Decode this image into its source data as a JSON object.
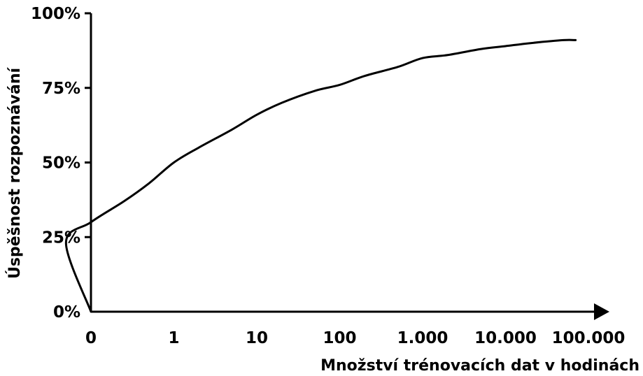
{
  "chart_data": {
    "type": "line",
    "title": "",
    "xlabel": "Množství trénovacích dat v hodinách",
    "ylabel": "Úspěšnost rozpoznávání",
    "x_scale": "log",
    "x_ticks": [
      {
        "label": "0",
        "value": 0
      },
      {
        "label": "1",
        "value": 1
      },
      {
        "label": "10",
        "value": 10
      },
      {
        "label": "100",
        "value": 100
      },
      {
        "label": "1.000",
        "value": 1000
      },
      {
        "label": "10.000",
        "value": 10000
      },
      {
        "label": "100.000",
        "value": 100000
      }
    ],
    "y_ticks": [
      {
        "label": "0%",
        "value": 0
      },
      {
        "label": "25%",
        "value": 25
      },
      {
        "label": "50%",
        "value": 50
      },
      {
        "label": "75%",
        "value": 75
      },
      {
        "label": "100%",
        "value": 100
      }
    ],
    "ylim": [
      0,
      100
    ],
    "grid": false,
    "line_color": "#000000",
    "series": [
      {
        "name": "",
        "points": [
          {
            "x": 0,
            "y": 0
          },
          {
            "x": 0.05,
            "y": 23
          },
          {
            "x": 0.1,
            "y": 30
          },
          {
            "x": 0.25,
            "y": 37
          },
          {
            "x": 0.5,
            "y": 43
          },
          {
            "x": 1,
            "y": 50
          },
          {
            "x": 2,
            "y": 55
          },
          {
            "x": 5,
            "y": 61
          },
          {
            "x": 10,
            "y": 66
          },
          {
            "x": 20,
            "y": 70
          },
          {
            "x": 50,
            "y": 74
          },
          {
            "x": 100,
            "y": 76
          },
          {
            "x": 200,
            "y": 79
          },
          {
            "x": 500,
            "y": 82
          },
          {
            "x": 1000,
            "y": 85
          },
          {
            "x": 2000,
            "y": 86
          },
          {
            "x": 5000,
            "y": 88
          },
          {
            "x": 10000,
            "y": 89
          },
          {
            "x": 20000,
            "y": 90
          },
          {
            "x": 50000,
            "y": 91
          },
          {
            "x": 70000,
            "y": 91
          }
        ]
      }
    ]
  }
}
